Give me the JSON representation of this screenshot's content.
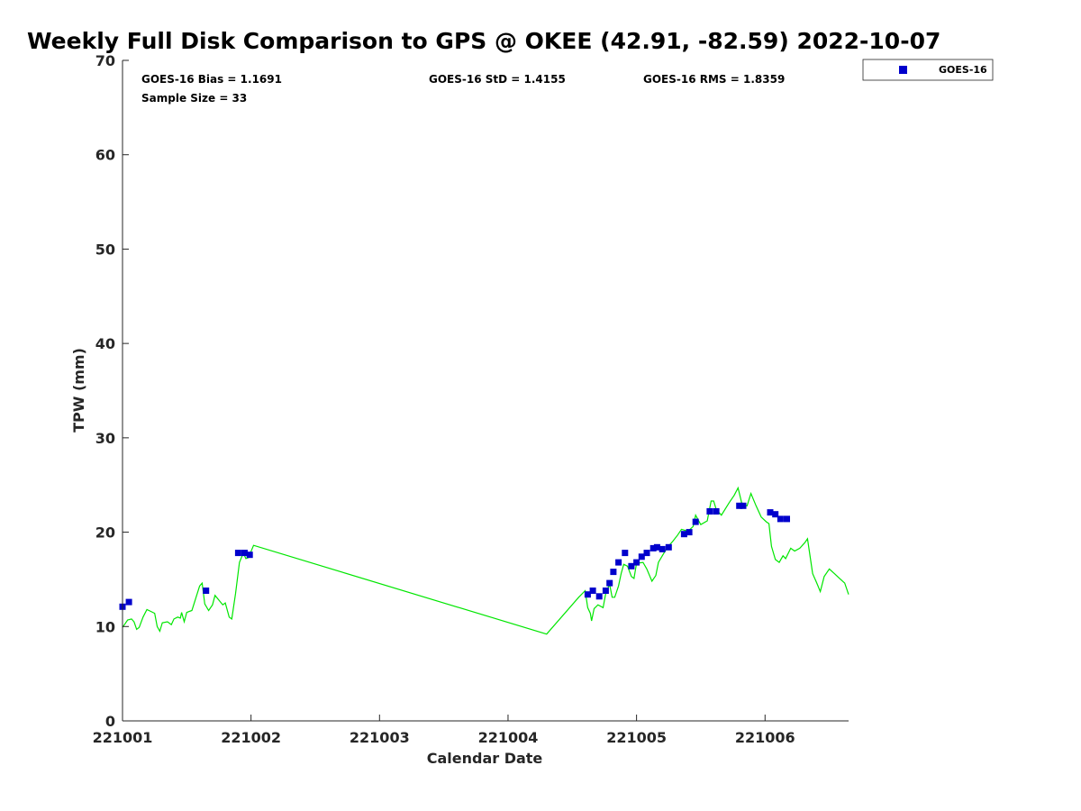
{
  "chart_data": {
    "type": "scatter",
    "title": "Weekly Full Disk Comparison to GPS @ OKEE (42.91, -82.59) 2022-10-07",
    "xlabel": "Calendar Date",
    "ylabel": "TPW (mm)",
    "xlim": [
      221001,
      221006.65
    ],
    "ylim": [
      0,
      70
    ],
    "xticks": [
      {
        "v": 221001,
        "label": "221001"
      },
      {
        "v": 221002,
        "label": "221002"
      },
      {
        "v": 221003,
        "label": "221003"
      },
      {
        "v": 221004,
        "label": "221004"
      },
      {
        "v": 221005,
        "label": "221005"
      },
      {
        "v": 221006,
        "label": "221006"
      }
    ],
    "yticks": [
      0,
      10,
      20,
      30,
      40,
      50,
      60,
      70
    ],
    "stats": {
      "bias": "GOES-16 Bias = 1.1691",
      "std": "GOES-16 StD = 1.4155",
      "rms": "GOES-16 RMS = 1.8359",
      "sample": "Sample Size = 33"
    },
    "legend": {
      "label": "GOES-16",
      "placement": "top-right outside"
    },
    "colors": {
      "goes": "#0000cc",
      "gps": "#00e600"
    },
    "series": [
      {
        "name": "GOES-16",
        "marker": "square",
        "points": [
          [
            221001.0,
            12.1
          ],
          [
            221001.05,
            12.6
          ],
          [
            221001.65,
            13.8
          ],
          [
            221001.9,
            17.8
          ],
          [
            221001.95,
            17.8
          ],
          [
            221001.99,
            17.6
          ],
          [
            221004.62,
            13.4
          ],
          [
            221004.66,
            13.8
          ],
          [
            221004.71,
            13.2
          ],
          [
            221004.76,
            13.8
          ],
          [
            221004.79,
            14.6
          ],
          [
            221004.82,
            15.8
          ],
          [
            221004.86,
            16.8
          ],
          [
            221004.91,
            17.8
          ],
          [
            221004.96,
            16.4
          ],
          [
            221005.0,
            16.8
          ],
          [
            221005.04,
            17.4
          ],
          [
            221005.08,
            17.8
          ],
          [
            221005.13,
            18.3
          ],
          [
            221005.16,
            18.4
          ],
          [
            221005.2,
            18.2
          ],
          [
            221005.25,
            18.4
          ],
          [
            221005.37,
            19.8
          ],
          [
            221005.41,
            20.0
          ],
          [
            221005.46,
            21.1
          ],
          [
            221005.57,
            22.2
          ],
          [
            221005.62,
            22.2
          ],
          [
            221005.8,
            22.8
          ],
          [
            221005.83,
            22.8
          ],
          [
            221006.04,
            22.1
          ],
          [
            221006.08,
            21.9
          ],
          [
            221006.12,
            21.4
          ],
          [
            221006.17,
            21.4
          ]
        ]
      },
      {
        "name": "",
        "marker": "line",
        "points": [
          [
            221001.0,
            9.9
          ],
          [
            221001.04,
            10.7
          ],
          [
            221001.07,
            10.8
          ],
          [
            221001.09,
            10.5
          ],
          [
            221001.11,
            9.7
          ],
          [
            221001.13,
            9.9
          ],
          [
            221001.16,
            11.0
          ],
          [
            221001.19,
            11.8
          ],
          [
            221001.22,
            11.6
          ],
          [
            221001.25,
            11.4
          ],
          [
            221001.27,
            10.0
          ],
          [
            221001.29,
            9.5
          ],
          [
            221001.31,
            10.4
          ],
          [
            221001.35,
            10.5
          ],
          [
            221001.38,
            10.2
          ],
          [
            221001.4,
            10.8
          ],
          [
            221001.43,
            11.0
          ],
          [
            221001.45,
            10.9
          ],
          [
            221001.46,
            11.5
          ],
          [
            221001.48,
            10.5
          ],
          [
            221001.5,
            11.5
          ],
          [
            221001.54,
            11.7
          ],
          [
            221001.57,
            13.0
          ],
          [
            221001.6,
            14.3
          ],
          [
            221001.62,
            14.6
          ],
          [
            221001.64,
            12.4
          ],
          [
            221001.67,
            11.7
          ],
          [
            221001.7,
            12.3
          ],
          [
            221001.72,
            13.3
          ],
          [
            221001.75,
            12.8
          ],
          [
            221001.78,
            12.3
          ],
          [
            221001.8,
            12.5
          ],
          [
            221001.83,
            11.0
          ],
          [
            221001.85,
            10.8
          ],
          [
            221001.88,
            13.5
          ],
          [
            221001.91,
            16.8
          ],
          [
            221001.94,
            17.8
          ],
          [
            221001.96,
            17.2
          ],
          [
            221001.98,
            17.3
          ],
          [
            221002.02,
            18.6
          ],
          [
            221004.3,
            9.2
          ],
          [
            221004.55,
            13.1
          ],
          [
            221004.6,
            13.8
          ],
          [
            221004.62,
            12.0
          ],
          [
            221004.64,
            11.4
          ],
          [
            221004.65,
            10.6
          ],
          [
            221004.67,
            11.9
          ],
          [
            221004.7,
            12.3
          ],
          [
            221004.74,
            12.0
          ],
          [
            221004.76,
            13.5
          ],
          [
            221004.79,
            14.5
          ],
          [
            221004.81,
            13.1
          ],
          [
            221004.83,
            13.1
          ],
          [
            221004.86,
            14.3
          ],
          [
            221004.88,
            15.6
          ],
          [
            221004.9,
            16.6
          ],
          [
            221004.93,
            16.4
          ],
          [
            221004.96,
            15.3
          ],
          [
            221004.98,
            15.1
          ],
          [
            221005.0,
            16.7
          ],
          [
            221005.05,
            16.8
          ],
          [
            221005.08,
            16.1
          ],
          [
            221005.12,
            14.8
          ],
          [
            221005.15,
            15.4
          ],
          [
            221005.17,
            16.8
          ],
          [
            221005.2,
            17.5
          ],
          [
            221005.24,
            18.4
          ],
          [
            221005.28,
            19.0
          ],
          [
            221005.32,
            19.7
          ],
          [
            221005.35,
            20.3
          ],
          [
            221005.4,
            20.1
          ],
          [
            221005.44,
            20.6
          ],
          [
            221005.46,
            21.8
          ],
          [
            221005.5,
            20.8
          ],
          [
            221005.55,
            21.2
          ],
          [
            221005.58,
            23.3
          ],
          [
            221005.6,
            23.3
          ],
          [
            221005.62,
            22.4
          ],
          [
            221005.66,
            21.8
          ],
          [
            221005.72,
            23.1
          ],
          [
            221005.76,
            23.9
          ],
          [
            221005.79,
            24.7
          ],
          [
            221005.82,
            23.0
          ],
          [
            221005.86,
            22.8
          ],
          [
            221005.89,
            24.1
          ],
          [
            221005.93,
            22.8
          ],
          [
            221005.97,
            21.6
          ],
          [
            221006.01,
            21.1
          ],
          [
            221006.03,
            20.9
          ],
          [
            221006.05,
            18.5
          ],
          [
            221006.08,
            17.1
          ],
          [
            221006.11,
            16.8
          ],
          [
            221006.14,
            17.5
          ],
          [
            221006.16,
            17.2
          ],
          [
            221006.2,
            18.3
          ],
          [
            221006.23,
            18.0
          ],
          [
            221006.27,
            18.3
          ],
          [
            221006.31,
            18.9
          ],
          [
            221006.33,
            19.3
          ],
          [
            221006.37,
            15.6
          ],
          [
            221006.4,
            14.7
          ],
          [
            221006.43,
            13.7
          ],
          [
            221006.46,
            15.3
          ],
          [
            221006.5,
            16.1
          ],
          [
            221006.54,
            15.6
          ],
          [
            221006.58,
            15.1
          ],
          [
            221006.62,
            14.6
          ],
          [
            221006.65,
            13.4
          ]
        ]
      }
    ]
  }
}
